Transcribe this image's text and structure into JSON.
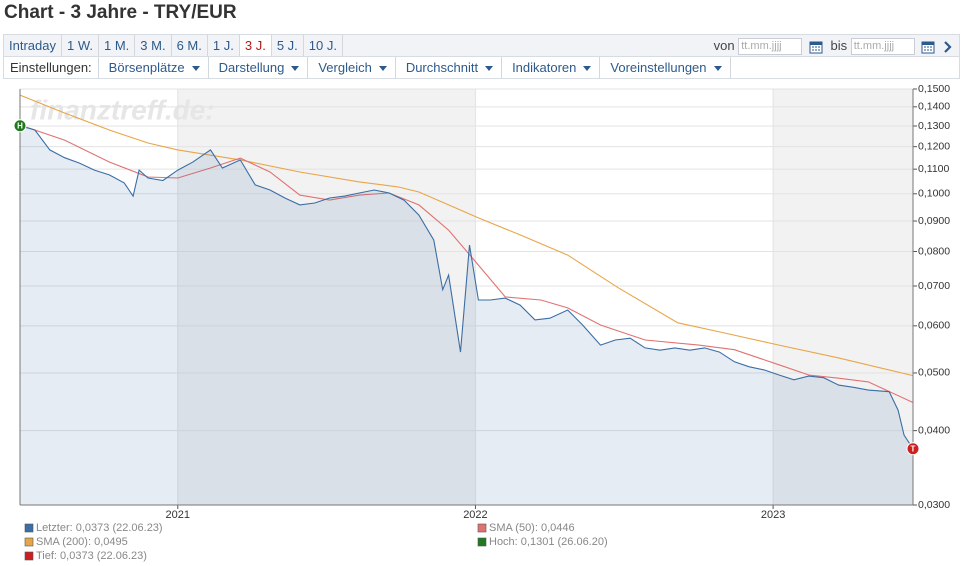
{
  "header": {
    "title": "Chart - 3 Jahre - TRY/EUR"
  },
  "tabs": [
    "Intraday",
    "1 W.",
    "1 M.",
    "3 M.",
    "6 M.",
    "1 J.",
    "3 J.",
    "5 J.",
    "10 J."
  ],
  "active_tab": 6,
  "date_range": {
    "from_label": "von",
    "from_placeholder": "tt.mm.jjjj",
    "to_label": "bis",
    "to_placeholder": "tt.mm.jjjj"
  },
  "settings": {
    "label": "Einstellungen:",
    "menus": [
      "Börsenplätze",
      "Darstellung",
      "Vergleich",
      "Durchschnitt",
      "Indikatoren",
      "Voreinstellungen"
    ]
  },
  "chart_data": {
    "type": "line",
    "watermark": "finanztreff.de:",
    "log_scale": true,
    "grid": true,
    "xlim": [
      2020.47,
      2023.47
    ],
    "xticks": [
      2021,
      2022,
      2023
    ],
    "ylim": [
      0.03,
      0.15
    ],
    "yticks": [
      {
        "value": 0.03,
        "label": "0,0300"
      },
      {
        "value": 0.04,
        "label": "0,0400"
      },
      {
        "value": 0.05,
        "label": "0,0500"
      },
      {
        "value": 0.06,
        "label": "0,0600"
      },
      {
        "value": 0.07,
        "label": "0,0700"
      },
      {
        "value": 0.08,
        "label": "0,0800"
      },
      {
        "value": 0.09,
        "label": "0,0900"
      },
      {
        "value": 0.1,
        "label": "0,1000"
      },
      {
        "value": 0.11,
        "label": "0,1100"
      },
      {
        "value": 0.12,
        "label": "0,1200"
      },
      {
        "value": 0.13,
        "label": "0,1300"
      },
      {
        "value": 0.14,
        "label": "0,1400"
      },
      {
        "value": 0.15,
        "label": "0,1500"
      }
    ],
    "series": [
      {
        "name": "Letzter: 0,0373 (22.06.23)",
        "color": "#3a6ea5",
        "area": true,
        "x": [
          2020.47,
          2020.52,
          2020.57,
          2020.62,
          2020.67,
          2020.72,
          2020.77,
          2020.82,
          2020.85,
          2020.87,
          2020.9,
          2020.95,
          2021.0,
          2021.05,
          2021.11,
          2021.15,
          2021.21,
          2021.26,
          2021.31,
          2021.36,
          2021.41,
          2021.46,
          2021.51,
          2021.56,
          2021.61,
          2021.66,
          2021.71,
          2021.76,
          2021.81,
          2021.86,
          2021.89,
          2021.91,
          2021.95,
          2021.98,
          2022.01,
          2022.05,
          2022.1,
          2022.15,
          2022.2,
          2022.25,
          2022.31,
          2022.36,
          2022.42,
          2022.47,
          2022.52,
          2022.57,
          2022.62,
          2022.67,
          2022.72,
          2022.77,
          2022.82,
          2022.87,
          2022.92,
          2022.97,
          2023.02,
          2023.07,
          2023.12,
          2023.17,
          2023.22,
          2023.27,
          2023.32,
          2023.39,
          2023.42,
          2023.44,
          2023.47
        ],
        "values": [
          0.1301,
          0.128,
          0.1185,
          0.115,
          0.1126,
          0.1096,
          0.1076,
          0.1043,
          0.0991,
          0.1096,
          0.1063,
          0.1053,
          0.1096,
          0.113,
          0.1185,
          0.1105,
          0.114,
          0.1035,
          0.1015,
          0.0984,
          0.0958,
          0.0965,
          0.0984,
          0.0991,
          0.1003,
          0.1015,
          0.1003,
          0.0976,
          0.0921,
          0.0836,
          0.069,
          0.073,
          0.0542,
          0.082,
          0.0663,
          0.0663,
          0.0668,
          0.065,
          0.0614,
          0.0618,
          0.0638,
          0.0602,
          0.0557,
          0.0568,
          0.0572,
          0.0551,
          0.0546,
          0.0551,
          0.0546,
          0.0551,
          0.0542,
          0.0522,
          0.0512,
          0.0506,
          0.0496,
          0.0487,
          0.0494,
          0.0491,
          0.0477,
          0.0473,
          0.0468,
          0.0465,
          0.0433,
          0.0393,
          0.0373
        ]
      },
      {
        "name": "SMA (50): 0,0446",
        "color": "#e07272",
        "x": [
          2020.47,
          2020.62,
          2020.77,
          2020.9,
          2021.0,
          2021.11,
          2021.21,
          2021.31,
          2021.41,
          2021.51,
          2021.61,
          2021.71,
          2021.81,
          2021.91,
          2022.01,
          2022.1,
          2022.22,
          2022.31,
          2022.42,
          2022.57,
          2022.75,
          2022.87,
          2023.02,
          2023.12,
          2023.22,
          2023.32,
          2023.47
        ],
        "values": [
          0.1305,
          0.1231,
          0.1131,
          0.1067,
          0.1063,
          0.1105,
          0.1148,
          0.1088,
          0.0995,
          0.0976,
          0.0995,
          0.1003,
          0.0958,
          0.0869,
          0.0759,
          0.0671,
          0.0663,
          0.0643,
          0.0602,
          0.0568,
          0.0557,
          0.0547,
          0.0516,
          0.0496,
          0.049,
          0.0483,
          0.0446
        ]
      },
      {
        "name": "SMA (200): 0,0495",
        "color": "#e8a548",
        "x": [
          2020.47,
          2020.62,
          2020.77,
          2020.9,
          2021.0,
          2021.21,
          2021.41,
          2021.61,
          2021.74,
          2021.81,
          2021.91,
          2022.01,
          2022.15,
          2022.31,
          2022.48,
          2022.68,
          2022.82,
          2023.02,
          2023.22,
          2023.47
        ],
        "values": [
          0.1465,
          0.1367,
          0.128,
          0.1217,
          0.1185,
          0.114,
          0.1088,
          0.1047,
          0.1027,
          0.1007,
          0.0958,
          0.0911,
          0.0853,
          0.0789,
          0.0695,
          0.0607,
          0.0586,
          0.0557,
          0.053,
          0.0495
        ]
      }
    ],
    "markers": [
      {
        "label": "H",
        "name": "Hoch: 0,1301 (26.06.20)",
        "color": "#1f7a1f",
        "x": 2020.47,
        "value": 0.1301
      },
      {
        "label": "T",
        "name": "Tief: 0,0373 (22.06.23)",
        "color": "#cc1f1f",
        "x": 2023.47,
        "value": 0.0373
      }
    ]
  }
}
